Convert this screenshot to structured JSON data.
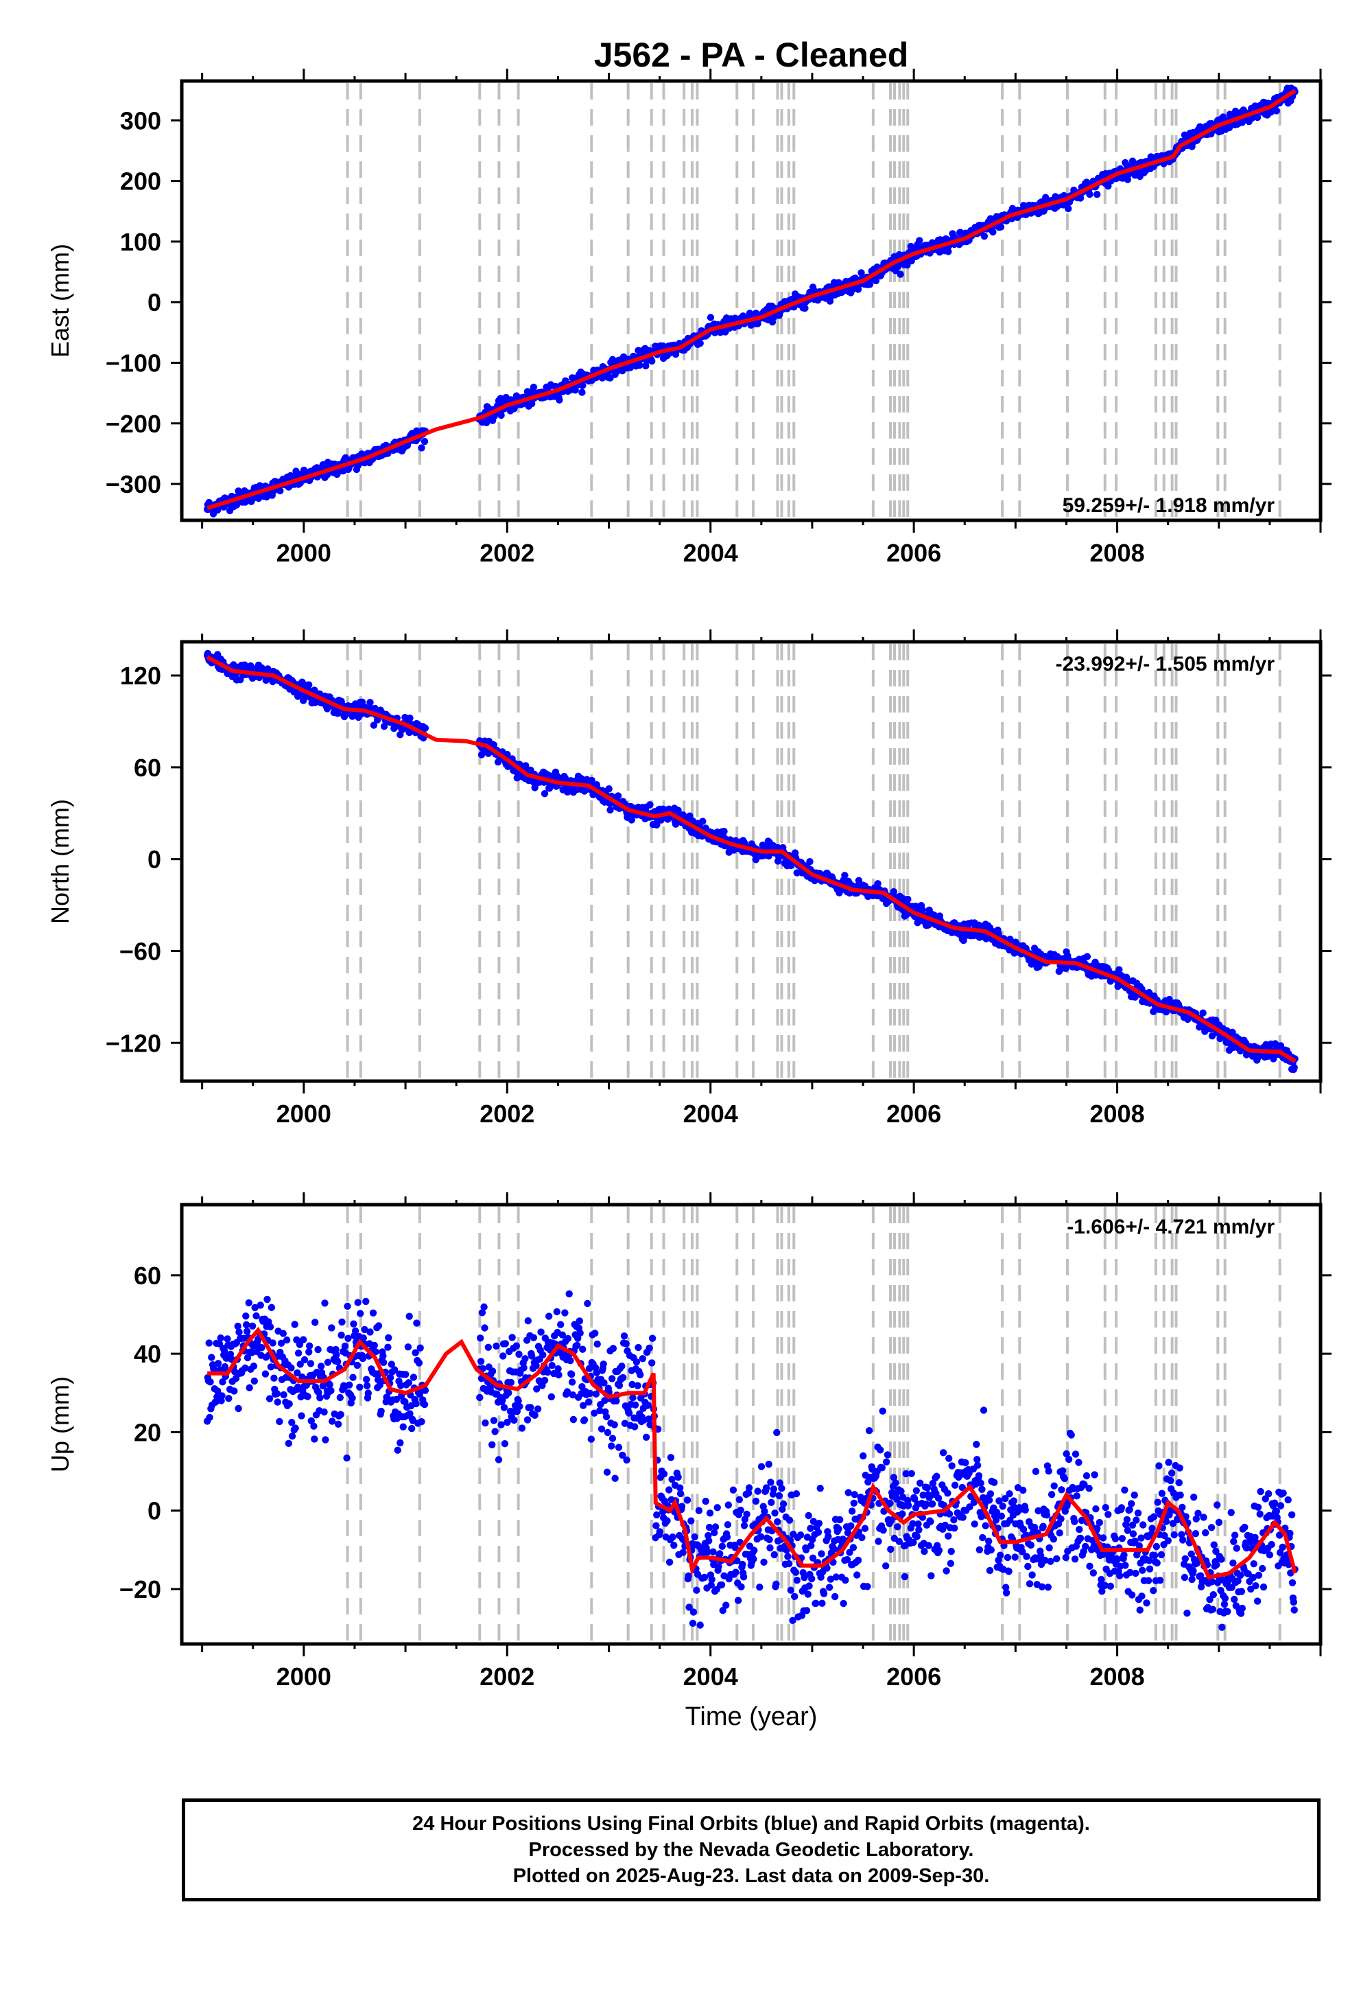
{
  "figure": {
    "title": "J562  - PA - Cleaned",
    "xlabel": "Time (year)",
    "footer_lines": [
      "24 Hour Positions Using Final Orbits (blue) and Rapid Orbits (magenta).",
      "Processed by the Nevada Geodetic Laboratory.",
      "Plotted on 2025-Aug-23. Last data on 2009-Sep-30."
    ],
    "colors": {
      "points": "#0000ff",
      "model": "#ff0000",
      "events": "#c0c0c0",
      "axes": "#000000"
    }
  },
  "chart_data": [
    {
      "type": "scatter",
      "name": "east",
      "ylabel": "East (mm)",
      "rate_text": "59.259+/- 1.918 mm/yr",
      "rate_position": "bottom-right",
      "xlim": [
        1998.8,
        2010.0
      ],
      "ylim": [
        -360,
        365
      ],
      "xticks": [
        2000,
        2002,
        2004,
        2006,
        2008
      ],
      "yticks": [
        -300,
        -200,
        -100,
        0,
        100,
        200,
        300
      ],
      "ytick_labels": [
        "−300",
        "−200",
        "−100",
        "0",
        "100",
        "200",
        "300"
      ],
      "model": [
        [
          1999.05,
          -340
        ],
        [
          2000.0,
          -290
        ],
        [
          2000.6,
          -258
        ],
        [
          2001.0,
          -230
        ],
        [
          2001.3,
          -210
        ],
        [
          2001.75,
          -190
        ],
        [
          2002.0,
          -170
        ],
        [
          2002.5,
          -145
        ],
        [
          2003.0,
          -110
        ],
        [
          2003.5,
          -82
        ],
        [
          2003.7,
          -75
        ],
        [
          2004.0,
          -45
        ],
        [
          2004.5,
          -25
        ],
        [
          2004.7,
          -10
        ],
        [
          2005.0,
          10
        ],
        [
          2005.5,
          35
        ],
        [
          2005.8,
          65
        ],
        [
          2006.0,
          80
        ],
        [
          2006.5,
          105
        ],
        [
          2006.95,
          143
        ],
        [
          2007.5,
          170
        ],
        [
          2008.0,
          212
        ],
        [
          2008.55,
          240
        ],
        [
          2008.62,
          258
        ],
        [
          2009.0,
          292
        ],
        [
          2009.5,
          322
        ],
        [
          2009.75,
          349
        ]
      ],
      "scatter": {
        "noise": 6,
        "seasonal": 0,
        "gaps": [
          [
            2001.2,
            2001.72
          ]
        ]
      }
    },
    {
      "type": "scatter",
      "name": "north",
      "ylabel": "North (mm)",
      "rate_text": "-23.992+/- 1.505 mm/yr",
      "rate_position": "top-right",
      "xlim": [
        1998.8,
        2010.0
      ],
      "ylim": [
        -145,
        142
      ],
      "xticks": [
        2000,
        2002,
        2004,
        2006,
        2008
      ],
      "yticks": [
        -120,
        -60,
        0,
        60,
        120
      ],
      "ytick_labels": [
        "−120",
        "−60",
        "0",
        "60",
        "120"
      ],
      "model": [
        [
          1999.05,
          132
        ],
        [
          1999.3,
          123
        ],
        [
          1999.7,
          120
        ],
        [
          2000.0,
          110
        ],
        [
          2000.4,
          98
        ],
        [
          2000.6,
          97
        ],
        [
          2001.0,
          88
        ],
        [
          2001.3,
          78
        ],
        [
          2001.6,
          77
        ],
        [
          2001.8,
          74
        ],
        [
          2002.0,
          65
        ],
        [
          2002.2,
          55
        ],
        [
          2002.5,
          50
        ],
        [
          2002.8,
          48
        ],
        [
          2003.0,
          40
        ],
        [
          2003.2,
          32
        ],
        [
          2003.45,
          28
        ],
        [
          2003.6,
          30
        ],
        [
          2004.0,
          15
        ],
        [
          2004.2,
          10
        ],
        [
          2004.5,
          5
        ],
        [
          2004.7,
          5
        ],
        [
          2005.0,
          -10
        ],
        [
          2005.4,
          -20
        ],
        [
          2005.7,
          -22
        ],
        [
          2006.0,
          -35
        ],
        [
          2006.4,
          -45
        ],
        [
          2006.7,
          -47
        ],
        [
          2007.0,
          -58
        ],
        [
          2007.3,
          -67
        ],
        [
          2007.6,
          -68
        ],
        [
          2008.0,
          -78
        ],
        [
          2008.4,
          -95
        ],
        [
          2008.7,
          -100
        ],
        [
          2009.0,
          -112
        ],
        [
          2009.3,
          -125
        ],
        [
          2009.6,
          -126
        ],
        [
          2009.75,
          -132
        ]
      ],
      "scatter": {
        "noise": 2.5,
        "seasonal": 0,
        "gaps": [
          [
            2001.2,
            2001.72
          ]
        ]
      }
    },
    {
      "type": "scatter",
      "name": "up",
      "ylabel": "Up (mm)",
      "rate_text": "-1.606+/- 4.721 mm/yr",
      "rate_position": "top-right",
      "xlim": [
        1998.8,
        2010.0
      ],
      "ylim": [
        -34,
        78
      ],
      "xticks": [
        2000,
        2002,
        2004,
        2006,
        2008
      ],
      "yticks": [
        -20,
        0,
        20,
        40,
        60
      ],
      "ytick_labels": [
        "−20",
        "0",
        "20",
        "40",
        "60"
      ],
      "model": [
        [
          1999.05,
          35
        ],
        [
          1999.25,
          35
        ],
        [
          1999.45,
          43
        ],
        [
          1999.55,
          46
        ],
        [
          1999.75,
          37
        ],
        [
          1999.95,
          33
        ],
        [
          2000.2,
          33
        ],
        [
          2000.4,
          36
        ],
        [
          2000.55,
          43
        ],
        [
          2000.7,
          39
        ],
        [
          2000.85,
          31
        ],
        [
          2001.0,
          30
        ],
        [
          2001.2,
          32
        ],
        [
          2001.4,
          40
        ],
        [
          2001.55,
          43
        ],
        [
          2001.7,
          36
        ],
        [
          2001.9,
          32
        ],
        [
          2002.1,
          31
        ],
        [
          2002.3,
          35
        ],
        [
          2002.5,
          42
        ],
        [
          2002.65,
          40
        ],
        [
          2002.85,
          32
        ],
        [
          2003.0,
          29
        ],
        [
          2003.2,
          30
        ],
        [
          2003.35,
          30
        ],
        [
          2003.44,
          35
        ],
        [
          2003.46,
          2
        ],
        [
          2003.6,
          0
        ],
        [
          2003.65,
          2
        ],
        [
          2003.75,
          -5
        ],
        [
          2003.82,
          -15
        ],
        [
          2003.88,
          -12
        ],
        [
          2004.0,
          -12
        ],
        [
          2004.2,
          -13
        ],
        [
          2004.4,
          -6
        ],
        [
          2004.55,
          -2
        ],
        [
          2004.75,
          -8
        ],
        [
          2004.9,
          -14
        ],
        [
          2005.1,
          -14
        ],
        [
          2005.3,
          -10
        ],
        [
          2005.5,
          -2
        ],
        [
          2005.6,
          6
        ],
        [
          2005.75,
          0
        ],
        [
          2005.9,
          -3
        ],
        [
          2006.0,
          -1
        ],
        [
          2006.3,
          0
        ],
        [
          2006.55,
          6
        ],
        [
          2006.7,
          0
        ],
        [
          2006.85,
          -8
        ],
        [
          2007.0,
          -8
        ],
        [
          2007.3,
          -6
        ],
        [
          2007.5,
          4
        ],
        [
          2007.7,
          -2
        ],
        [
          2007.85,
          -10
        ],
        [
          2008.0,
          -10
        ],
        [
          2008.3,
          -10
        ],
        [
          2008.4,
          -5
        ],
        [
          2008.5,
          2
        ],
        [
          2008.6,
          0
        ],
        [
          2008.75,
          -8
        ],
        [
          2008.9,
          -17
        ],
        [
          2009.1,
          -16
        ],
        [
          2009.3,
          -12
        ],
        [
          2009.55,
          -3
        ],
        [
          2009.65,
          -6
        ],
        [
          2009.75,
          -16
        ]
      ],
      "scatter": {
        "noise": 7,
        "seasonal": 0,
        "gaps": [
          [
            2001.2,
            2001.72
          ]
        ]
      }
    }
  ],
  "event_lines": [
    2000.43,
    2000.56,
    2001.14,
    2001.73,
    2001.92,
    2002.11,
    2002.83,
    2003.19,
    2003.42,
    2003.54,
    2003.74,
    2003.82,
    2003.87,
    2004.26,
    2004.42,
    2004.66,
    2004.7,
    2004.77,
    2004.82,
    2005.6,
    2005.77,
    2005.81,
    2005.86,
    2005.9,
    2005.94,
    2006.87,
    2007.04,
    2007.51,
    2007.88,
    2007.99,
    2008.38,
    2008.46,
    2008.54,
    2008.58,
    2008.99,
    2009.06,
    2009.6
  ]
}
